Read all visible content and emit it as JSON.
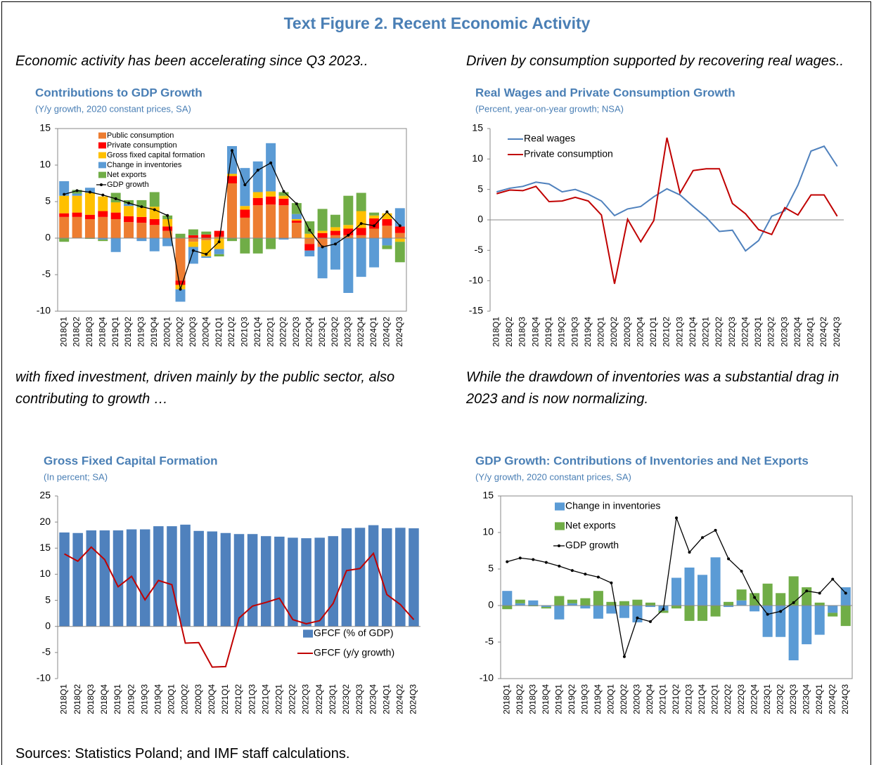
{
  "title": "Text Figure 2. Recent Economic Activity",
  "captions": [
    "Economic activity has been accelerating since Q3 2023..",
    "Driven by consumption supported by recovering real wages..",
    "with fixed investment, driven mainly by the public sector, also contributing to growth …",
    "While the drawdown of inventories was a substantial drag in 2023 and is now normalizing."
  ],
  "source": "Sources: Statistics Poland; and IMF staff calculations.",
  "chart_data": [
    {
      "type": "bar",
      "stacked": true,
      "title": "Contributions to GDP Growth",
      "subtitle": "(Y/y growth, 2020 constant prices, SA)",
      "categories": [
        "2018Q1",
        "2018Q2",
        "2018Q3",
        "2018Q4",
        "2019Q1",
        "2019Q2",
        "2019Q3",
        "2019Q4",
        "2020Q1",
        "2020Q2",
        "2020Q3",
        "2020Q4",
        "2021Q1",
        "2021Q2",
        "2021Q3",
        "2021Q4",
        "2022Q1",
        "2022Q2",
        "2022Q3",
        "2022Q4",
        "2023Q1",
        "2023Q2",
        "2023Q3",
        "2023Q4",
        "2024Q1",
        "2024Q2",
        "2024Q3"
      ],
      "ylim": [
        -10,
        15
      ],
      "yticks": [
        -10,
        -5,
        0,
        5,
        10,
        15
      ],
      "legend": "upper left",
      "frame": true,
      "series": [
        {
          "name": "Public consumption",
          "color": "#ed7d31",
          "values": [
            2.9,
            2.9,
            2.6,
            2.9,
            2.6,
            2.2,
            2.1,
            1.8,
            1.0,
            -5.8,
            -0.5,
            -0.3,
            0.2,
            7.5,
            2.8,
            4.5,
            4.6,
            4.5,
            2.1,
            -0.8,
            -1.2,
            0.4,
            0.4,
            0.4,
            1.3,
            1.7,
            0.7
          ]
        },
        {
          "name": "Private consumption",
          "color": "#ff0000",
          "values": [
            0.5,
            0.6,
            0.6,
            0.8,
            0.9,
            0.8,
            0.8,
            0.8,
            0.6,
            -0.6,
            0.4,
            0.5,
            0.8,
            1.0,
            1.1,
            1.0,
            1.1,
            0.9,
            0.3,
            -0.9,
            0.7,
            0.6,
            0.9,
            1.0,
            1.4,
            0.9,
            0.9
          ]
        },
        {
          "name": "Gross fixed capital formation",
          "color": "#ffc000",
          "values": [
            2.4,
            2.3,
            3.0,
            2.0,
            1.4,
            1.4,
            1.3,
            1.7,
            1.0,
            -0.6,
            -0.7,
            -2.2,
            -1.5,
            0.3,
            0.5,
            0.8,
            0.7,
            0.4,
            0.2,
            0.6,
            0.3,
            0.5,
            0.5,
            2.3,
            0.4,
            0.8,
            -0.5
          ]
        },
        {
          "name": "Change in inventories",
          "color": "#5b9bd5",
          "values": [
            2.0,
            0.3,
            0.7,
            -0.2,
            -1.9,
            0.3,
            -0.4,
            -1.8,
            -1.1,
            -1.7,
            -2.3,
            -0.2,
            -0.7,
            3.8,
            5.2,
            4.2,
            6.6,
            -0.2,
            0.7,
            -0.8,
            -4.3,
            -4.3,
            -7.5,
            -5.3,
            -4.0,
            -1.0,
            2.5
          ]
        },
        {
          "name": "Net exports",
          "color": "#70ad47",
          "values": [
            -0.5,
            0.5,
            -0.1,
            -0.2,
            1.3,
            0.5,
            1.0,
            2.0,
            0.5,
            0.6,
            0.8,
            0.4,
            -0.3,
            -0.4,
            -2.1,
            -2.1,
            -1.5,
            0.5,
            1.5,
            1.7,
            3.0,
            1.7,
            4.0,
            2.5,
            0.4,
            -0.5,
            -2.8
          ]
        },
        {
          "name": "GDP growth",
          "type": "line",
          "marker": true,
          "color": "#000000",
          "values": [
            6.0,
            6.5,
            6.3,
            5.9,
            5.4,
            4.8,
            4.3,
            3.9,
            3.1,
            -7.0,
            -1.7,
            -2.2,
            -0.5,
            12.0,
            7.3,
            9.3,
            10.3,
            6.4,
            4.7,
            1.1,
            -1.2,
            -0.8,
            0.4,
            2.0,
            1.7,
            3.6,
            1.7
          ]
        }
      ]
    },
    {
      "type": "line",
      "title": "Real Wages and Private Consumption Growth",
      "subtitle": "(Percent, year-on-year growth; NSA)",
      "categories": [
        "2018Q1",
        "2018Q2",
        "2018Q3",
        "2018Q4",
        "2019Q1",
        "2019Q2",
        "2019Q3",
        "2019Q4",
        "2020Q1",
        "2020Q2",
        "2020Q3",
        "2020Q4",
        "2021Q1",
        "2021Q2",
        "2021Q3",
        "2021Q4",
        "2022Q1",
        "2022Q2",
        "2022Q3",
        "2022Q4",
        "2023Q1",
        "2023Q2",
        "2023Q3",
        "2023Q4",
        "2024Q1",
        "2024Q2",
        "2024Q3"
      ],
      "ylim": [
        -15,
        15
      ],
      "yticks": [
        -15,
        -10,
        -5,
        0,
        5,
        10,
        15
      ],
      "legend": "upper left",
      "frame": false,
      "series": [
        {
          "name": "Real wages",
          "type": "line",
          "color": "#4f81bd",
          "values": [
            4.6,
            5.2,
            5.5,
            6.2,
            5.9,
            4.6,
            5.0,
            4.2,
            3.1,
            0.7,
            1.8,
            2.2,
            3.8,
            5.1,
            4.1,
            2.2,
            0.4,
            -1.9,
            -1.7,
            -5.1,
            -3.4,
            0.6,
            1.5,
            5.7,
            11.3,
            12.1,
            8.8
          ]
        },
        {
          "name": "Private consumption",
          "type": "line",
          "color": "#c00000",
          "values": [
            4.3,
            4.9,
            4.8,
            5.5,
            3.0,
            3.1,
            3.7,
            3.1,
            0.8,
            -10.5,
            0.1,
            -3.6,
            -0.1,
            13.5,
            4.4,
            8.1,
            8.4,
            8.4,
            2.7,
            1.0,
            -1.6,
            -2.4,
            2.0,
            0.8,
            4.1,
            4.1,
            0.6
          ]
        }
      ]
    },
    {
      "type": "bar",
      "stacked": false,
      "title": "Gross Fixed Capital Formation",
      "subtitle": "(In percent; SA)",
      "categories": [
        "2018Q1",
        "2018Q2",
        "2018Q3",
        "2018Q4",
        "2019Q1",
        "2019Q2",
        "2019Q3",
        "2019Q4",
        "2020Q1",
        "2020Q2",
        "2020Q3",
        "2020Q4",
        "2021Q1",
        "2021Q2",
        "2021Q3",
        "2021Q4",
        "2022Q1",
        "2022Q2",
        "2022Q3",
        "2022Q4",
        "2023Q1",
        "2023Q2",
        "2023Q3",
        "2023Q4",
        "2024Q1",
        "2024Q2",
        "2024Q3"
      ],
      "ylim": [
        -10,
        25
      ],
      "yticks": [
        -10,
        -5,
        0,
        5,
        10,
        15,
        20,
        25
      ],
      "legend": "lower right",
      "frame": false,
      "series": [
        {
          "name": "GFCF (% of GDP)",
          "color": "#4f81bd",
          "values": [
            18.0,
            17.9,
            18.4,
            18.4,
            18.4,
            18.6,
            18.6,
            19.2,
            19.2,
            19.5,
            18.3,
            18.2,
            17.9,
            17.7,
            17.7,
            17.3,
            17.2,
            17.0,
            16.9,
            17.0,
            17.3,
            18.8,
            18.9,
            19.4,
            18.8,
            18.9,
            18.8
          ]
        },
        {
          "name": "GFCF (y/y growth)",
          "type": "line",
          "color": "#c00000",
          "values": [
            13.9,
            12.5,
            15.2,
            12.8,
            7.6,
            9.6,
            5.1,
            8.8,
            8.0,
            -3.2,
            -3.1,
            -7.8,
            -7.7,
            1.6,
            3.9,
            4.6,
            5.4,
            1.3,
            0.5,
            1.1,
            4.4,
            10.7,
            11.1,
            14.0,
            6.1,
            4.2,
            1.3
          ]
        }
      ]
    },
    {
      "type": "bar",
      "stacked": true,
      "title": "GDP Growth: Contributions of Inventories and Net Exports",
      "subtitle": "(Y/y growth, 2020 constant prices, SA)",
      "categories": [
        "2018Q1",
        "2018Q2",
        "2018Q3",
        "2018Q4",
        "2019Q1",
        "2019Q2",
        "2019Q3",
        "2019Q4",
        "2020Q1",
        "2020Q2",
        "2020Q3",
        "2020Q4",
        "2021Q1",
        "2021Q2",
        "2021Q3",
        "2021Q4",
        "2022Q1",
        "2022Q2",
        "2022Q3",
        "2022Q4",
        "2023Q1",
        "2023Q2",
        "2023Q3",
        "2023Q4",
        "2024Q1",
        "2024Q2",
        "2024Q3"
      ],
      "ylim": [
        -10,
        15
      ],
      "yticks": [
        -10,
        -5,
        0,
        5,
        10,
        15
      ],
      "legend": "upper left",
      "frame": true,
      "series": [
        {
          "name": "Change in inventories",
          "color": "#5b9bd5",
          "values": [
            2.0,
            0.3,
            0.7,
            -0.2,
            -1.9,
            0.3,
            -0.4,
            -1.8,
            -1.1,
            -1.7,
            -2.3,
            -0.2,
            -0.7,
            3.8,
            5.2,
            4.2,
            6.6,
            -0.2,
            0.7,
            -0.8,
            -4.3,
            -4.3,
            -7.5,
            -5.3,
            -4.0,
            -1.0,
            2.5
          ]
        },
        {
          "name": "Net exports",
          "color": "#70ad47",
          "values": [
            -0.5,
            0.5,
            -0.1,
            -0.2,
            1.3,
            0.5,
            1.0,
            2.0,
            0.5,
            0.6,
            0.8,
            0.4,
            -0.3,
            -0.4,
            -2.1,
            -2.1,
            -1.5,
            0.5,
            1.5,
            1.7,
            3.0,
            1.7,
            4.0,
            2.5,
            0.4,
            -0.5,
            -2.8
          ]
        },
        {
          "name": "GDP growth",
          "type": "line",
          "marker": true,
          "color": "#000000",
          "values": [
            6.0,
            6.5,
            6.3,
            5.9,
            5.4,
            4.8,
            4.3,
            3.9,
            3.1,
            -7.0,
            -1.7,
            -2.2,
            -0.5,
            12.0,
            7.3,
            9.3,
            10.3,
            6.4,
            4.7,
            1.1,
            -1.2,
            -0.8,
            0.4,
            2.0,
            1.7,
            3.6,
            1.7
          ]
        }
      ]
    }
  ]
}
